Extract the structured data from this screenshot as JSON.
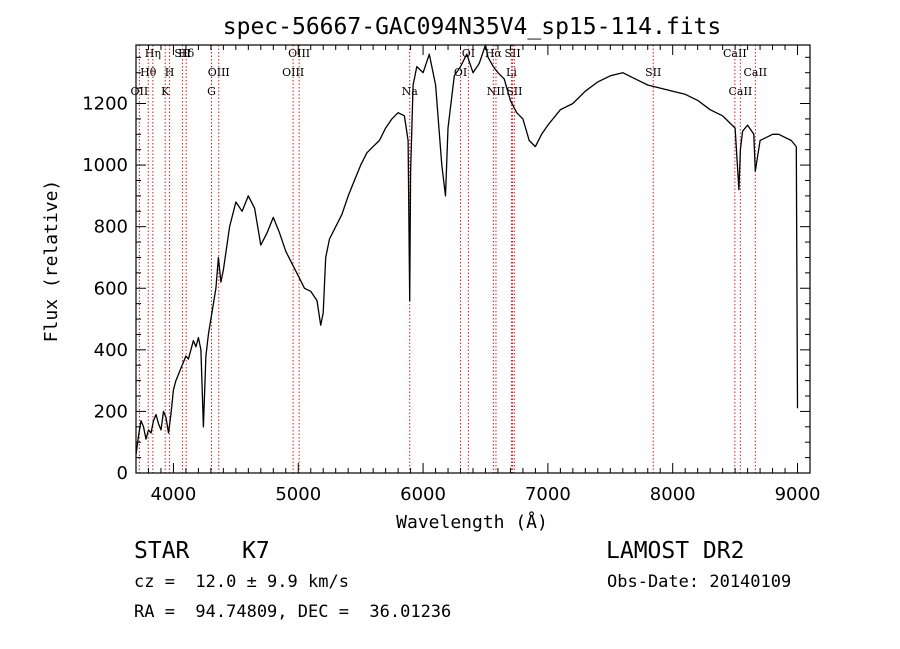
{
  "info": {
    "object_class": "STAR",
    "subclass": "K7",
    "survey": "LAMOST DR2",
    "redshift_line": "cz =  12.0 ± 9.9 km/s",
    "obs_date_line": "Obs-Date: 20140109",
    "coords_line": "RA =  94.74809, DEC =  36.01236"
  },
  "chart_data": {
    "type": "line",
    "title": "spec-56667-GAC094N35V4_sp15-114.fits",
    "xlabel": "Wavelength (Å)",
    "ylabel": "Flux (relative)",
    "xlim": [
      3700,
      9100
    ],
    "ylim": [
      0,
      1390
    ],
    "x_ticks": [
      4000,
      5000,
      6000,
      7000,
      8000,
      9000
    ],
    "y_ticks": [
      0,
      200,
      400,
      600,
      800,
      1000,
      1200
    ],
    "grid": false,
    "series": [
      {
        "x": [
          3700,
          3720,
          3740,
          3760,
          3780,
          3800,
          3820,
          3840,
          3860,
          3880,
          3900,
          3920,
          3940,
          3960,
          3980,
          4000,
          4020,
          4040,
          4060,
          4080,
          4100,
          4120,
          4140,
          4160,
          4180,
          4200,
          4220,
          4240,
          4260,
          4280,
          4300,
          4320,
          4340,
          4360,
          4380,
          4400,
          4450,
          4500,
          4550,
          4600,
          4650,
          4700,
          4750,
          4800,
          4850,
          4900,
          4950,
          5000,
          5050,
          5100,
          5150,
          5180,
          5200,
          5220,
          5250,
          5300,
          5350,
          5400,
          5450,
          5500,
          5550,
          5600,
          5650,
          5700,
          5750,
          5800,
          5850,
          5880,
          5893,
          5900,
          5920,
          5950,
          6000,
          6050,
          6100,
          6150,
          6180,
          6200,
          6250,
          6300,
          6350,
          6400,
          6450,
          6500,
          6520,
          6563,
          6600,
          6650,
          6700,
          6750,
          6800,
          6850,
          6900,
          6950,
          7000,
          7100,
          7200,
          7300,
          7400,
          7500,
          7600,
          7700,
          7800,
          7900,
          8000,
          8100,
          8200,
          8300,
          8400,
          8450,
          8500,
          8530,
          8542,
          8560,
          8600,
          8650,
          8662,
          8700,
          8750,
          8800,
          8850,
          8900,
          8950,
          8990,
          9000
        ],
        "values": [
          60,
          120,
          170,
          150,
          110,
          140,
          130,
          170,
          190,
          160,
          140,
          200,
          180,
          130,
          190,
          270,
          300,
          320,
          340,
          360,
          380,
          370,
          400,
          430,
          410,
          440,
          400,
          150,
          380,
          450,
          500,
          550,
          600,
          700,
          620,
          660,
          800,
          880,
          850,
          900,
          860,
          740,
          780,
          830,
          780,
          720,
          680,
          640,
          600,
          590,
          560,
          480,
          520,
          700,
          760,
          800,
          840,
          900,
          950,
          1000,
          1040,
          1060,
          1080,
          1120,
          1150,
          1170,
          1160,
          1080,
          560,
          980,
          1260,
          1320,
          1300,
          1360,
          1260,
          1000,
          900,
          1120,
          1290,
          1320,
          1360,
          1300,
          1330,
          1390,
          1350,
          1320,
          1300,
          1280,
          1210,
          1170,
          1150,
          1080,
          1060,
          1100,
          1130,
          1180,
          1200,
          1240,
          1270,
          1290,
          1300,
          1280,
          1260,
          1250,
          1240,
          1230,
          1210,
          1180,
          1160,
          1140,
          1120,
          920,
          1050,
          1110,
          1130,
          1100,
          980,
          1080,
          1090,
          1100,
          1100,
          1090,
          1080,
          1060,
          210
        ]
      }
    ],
    "annotations": [
      {
        "label": "Hη",
        "x": 3835
      },
      {
        "label": "Hθ",
        "x": 3798
      },
      {
        "label": "OII",
        "x": 3727
      },
      {
        "label": "SII",
        "x": 4072
      },
      {
        "label": "H",
        "x": 3969
      },
      {
        "label": "K",
        "x": 3934
      },
      {
        "label": "Hδ",
        "x": 4102
      },
      {
        "label": "OIII",
        "x": 4363
      },
      {
        "label": "G",
        "x": 4305
      },
      {
        "label": "OIII",
        "x": 5007
      },
      {
        "label": "OIII",
        "x": 4959
      },
      {
        "label": "Na",
        "x": 5893
      },
      {
        "label": "OI",
        "x": 6363
      },
      {
        "label": "OI",
        "x": 6300
      },
      {
        "label": "NII",
        "x": 6584
      },
      {
        "label": "Hα",
        "x": 6563
      },
      {
        "label": "Li",
        "x": 6708
      },
      {
        "label": "SII",
        "x": 6731
      },
      {
        "label": "SII",
        "x": 6717
      },
      {
        "label": "SII",
        "x": 7844
      },
      {
        "label": "CaII",
        "x": 8542
      },
      {
        "label": "CaII",
        "x": 8498
      },
      {
        "label": "CaII",
        "x": 8662
      }
    ],
    "colors": {
      "spectrum": "#000000",
      "line_markers": "#cc2222",
      "axes": "#000000"
    }
  }
}
